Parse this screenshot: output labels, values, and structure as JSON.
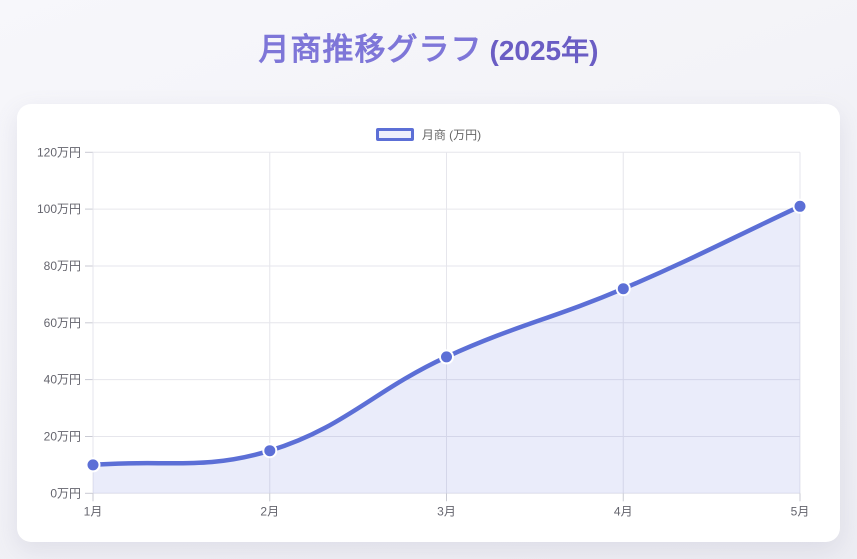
{
  "page": {
    "title_main": "月商推移グラフ",
    "title_suffix": "(2025年)"
  },
  "legend": {
    "label": "月商 (万円)"
  },
  "chart_data": {
    "type": "line",
    "title": "月商推移グラフ (2025年)",
    "categories": [
      "1月",
      "2月",
      "3月",
      "4月",
      "5月"
    ],
    "series": [
      {
        "name": "月商 (万円)",
        "values": [
          10,
          15,
          48,
          72,
          101
        ]
      }
    ],
    "xlabel": "",
    "ylabel": "万円",
    "ylim": [
      0,
      120
    ],
    "ytick_step": 20,
    "ytick_labels": [
      "0万円",
      "20万円",
      "40万円",
      "60万円",
      "80万円",
      "100万円",
      "120万円"
    ],
    "grid": true,
    "smooth": true,
    "area_fill": true,
    "legend_position": "top"
  },
  "colors": {
    "line": "#5c6fd6",
    "area_fill": "rgba(92,111,214,0.13)",
    "point_fill": "#5c6fd6",
    "point_border": "#ffffff",
    "grid": "#e6e6ec",
    "tick": "#c9cad3",
    "axis_text": "#65656e",
    "title_main": "#7e76d8",
    "title_suffix": "#6a5dc4",
    "legend_text": "#666666",
    "legend_swatch_fill": "#edeffb",
    "card_bg": "#ffffff"
  }
}
